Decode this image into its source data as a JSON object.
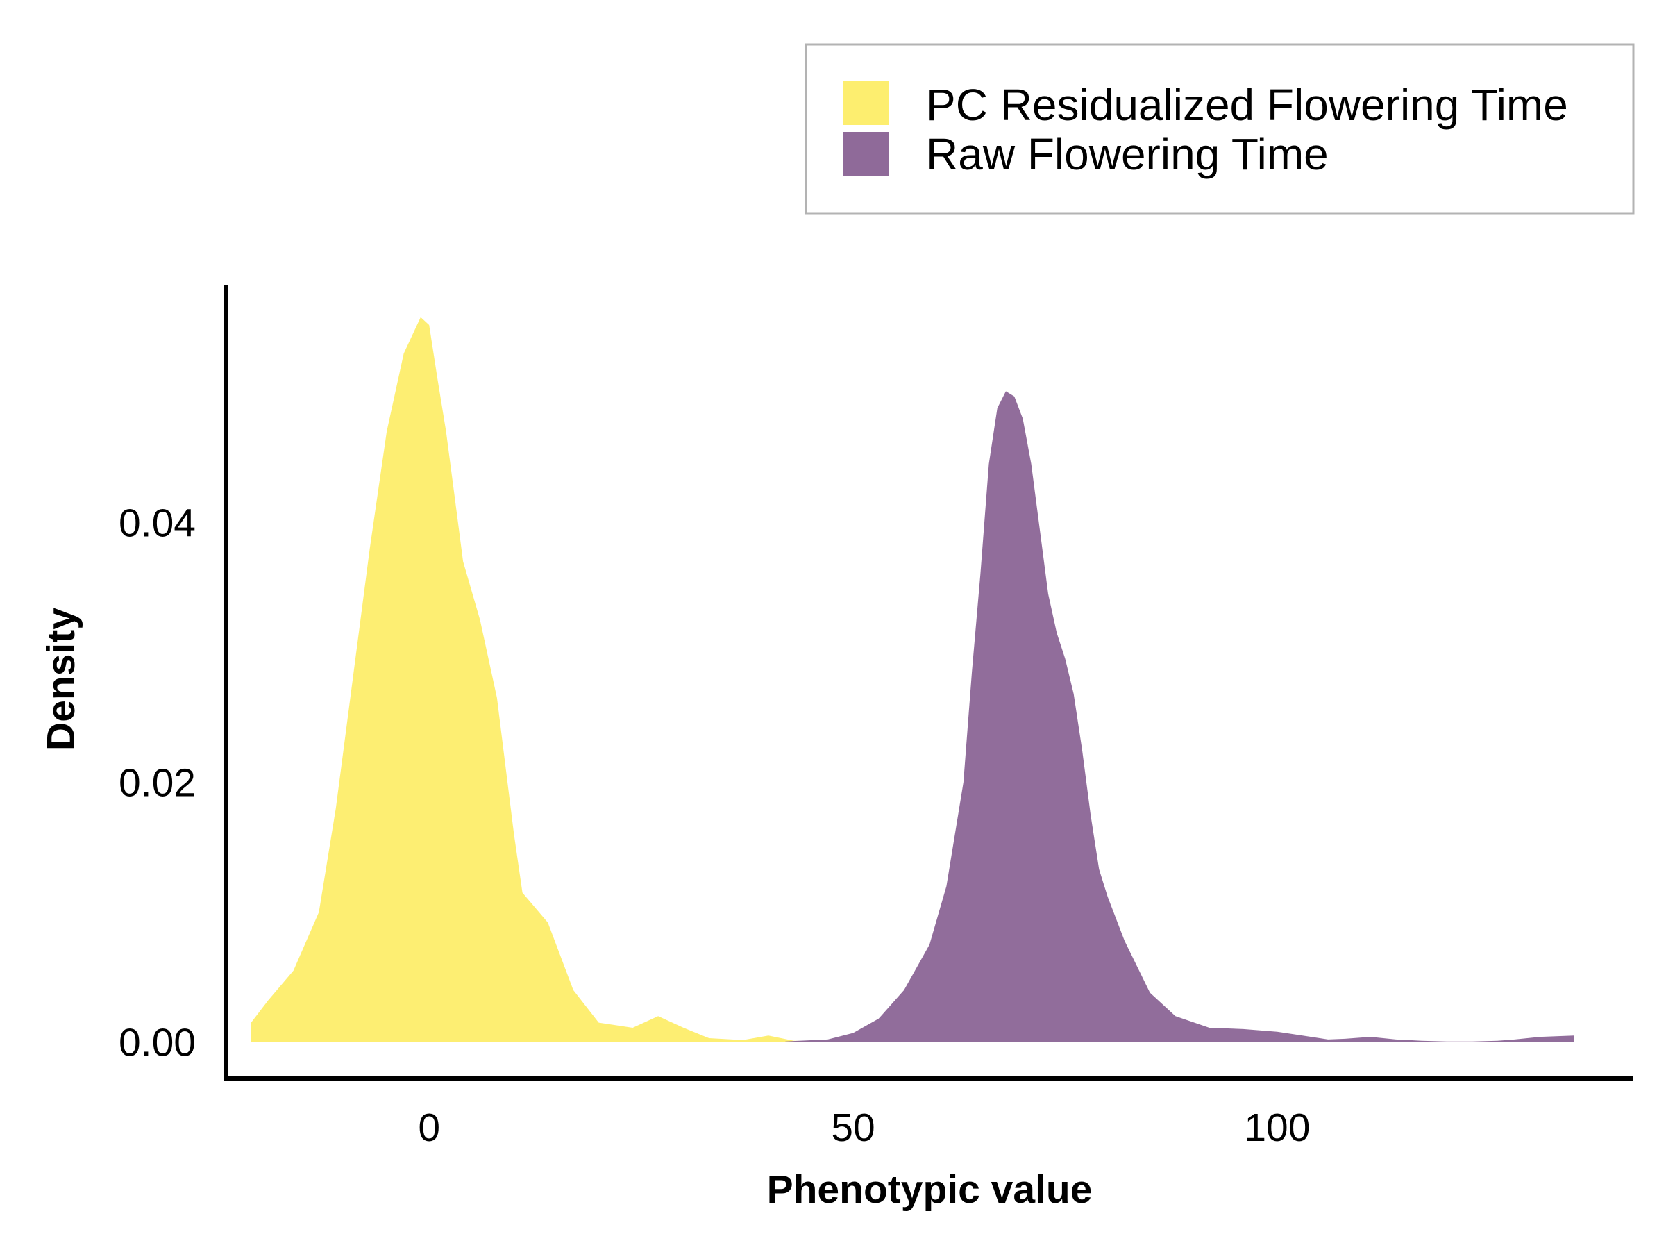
{
  "chart_data": {
    "type": "area",
    "xlabel": "Phenotypic value",
    "ylabel": "Density",
    "xlim": [
      -24,
      142
    ],
    "ylim": [
      -0.0028,
      0.0583
    ],
    "x_ticks": [
      0,
      50,
      100
    ],
    "x_tick_labels": [
      "0",
      "50",
      "100"
    ],
    "y_ticks": [
      0,
      0.02,
      0.04
    ],
    "y_tick_labels": [
      "0.00",
      "0.02",
      "0.04"
    ],
    "grid": false,
    "legend_position": "top-right",
    "series": [
      {
        "name": "PC Residualized Flowering Time",
        "color": "#FDEE6F",
        "points": [
          [
            -21,
            0.0015
          ],
          [
            -19,
            0.0032
          ],
          [
            -16,
            0.0055
          ],
          [
            -13,
            0.01
          ],
          [
            -11,
            0.018
          ],
          [
            -9,
            0.028
          ],
          [
            -7,
            0.038
          ],
          [
            -5,
            0.047
          ],
          [
            -3,
            0.053
          ],
          [
            -1,
            0.0558
          ],
          [
            0,
            0.0552
          ],
          [
            1,
            0.051
          ],
          [
            2,
            0.047
          ],
          [
            3,
            0.042
          ],
          [
            4,
            0.037
          ],
          [
            6,
            0.0325
          ],
          [
            8,
            0.0265
          ],
          [
            10,
            0.016
          ],
          [
            11,
            0.0115
          ],
          [
            14,
            0.0092
          ],
          [
            17,
            0.004
          ],
          [
            20,
            0.0015
          ],
          [
            24,
            0.0011
          ],
          [
            27,
            0.002
          ],
          [
            30,
            0.0011
          ],
          [
            33,
            0.0003
          ],
          [
            37,
            0.00015
          ],
          [
            40,
            0.0005
          ],
          [
            43,
            0.0001
          ],
          [
            46,
            5e-05
          ],
          [
            50,
            0.0001
          ]
        ]
      },
      {
        "name": "Raw Flowering Time",
        "color": "#8F6A99",
        "points": [
          [
            42,
            5e-05
          ],
          [
            47,
            0.0002
          ],
          [
            50,
            0.0007
          ],
          [
            53,
            0.0018
          ],
          [
            56,
            0.004
          ],
          [
            59,
            0.0075
          ],
          [
            61,
            0.012
          ],
          [
            63,
            0.02
          ],
          [
            64,
            0.0285
          ],
          [
            65,
            0.036
          ],
          [
            66,
            0.0445
          ],
          [
            67,
            0.0488
          ],
          [
            68,
            0.0501
          ],
          [
            69,
            0.0497
          ],
          [
            70,
            0.048
          ],
          [
            71,
            0.0445
          ],
          [
            72,
            0.0395
          ],
          [
            73,
            0.0345
          ],
          [
            74,
            0.0315
          ],
          [
            75,
            0.0295
          ],
          [
            76,
            0.0268
          ],
          [
            77,
            0.0225
          ],
          [
            78,
            0.0175
          ],
          [
            79,
            0.0133
          ],
          [
            80,
            0.0112
          ],
          [
            82,
            0.0078
          ],
          [
            85,
            0.0038
          ],
          [
            88,
            0.002
          ],
          [
            92,
            0.0011
          ],
          [
            96,
            0.001
          ],
          [
            100,
            0.0008
          ],
          [
            103,
            0.0005
          ],
          [
            106,
            0.0002
          ],
          [
            108,
            0.00025
          ],
          [
            111,
            0.0004
          ],
          [
            114,
            0.0002
          ],
          [
            117,
            0.0001
          ],
          [
            120,
            5e-05
          ],
          [
            123,
            5e-05
          ],
          [
            126,
            0.0001
          ],
          [
            128,
            0.0002
          ],
          [
            131,
            0.0004
          ],
          [
            135,
            0.0005
          ]
        ]
      }
    ]
  }
}
